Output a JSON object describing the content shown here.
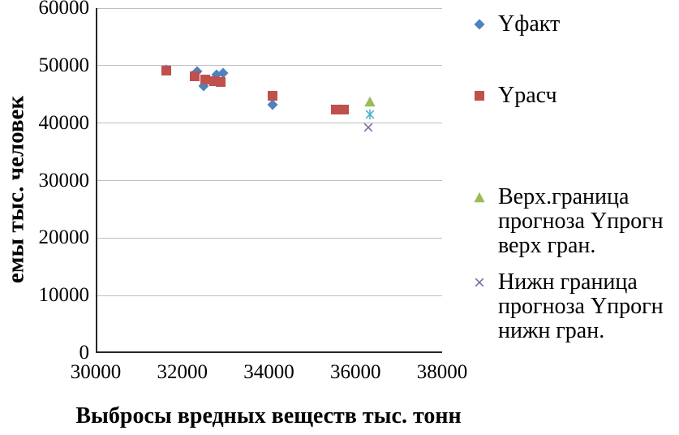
{
  "figure": {
    "background": "#ffffff",
    "grid_color": "#bfbfbf",
    "axis_color": "#262626"
  },
  "chart_data": {
    "type": "scatter",
    "xlabel": "Выбросы вредных веществ тыс. тонн",
    "ylabel": "емы тыс. человек",
    "xlim": [
      30000,
      38000
    ],
    "ylim": [
      0,
      60000
    ],
    "x_ticks": [
      30000,
      32000,
      34000,
      36000,
      38000
    ],
    "y_ticks": [
      0,
      10000,
      20000,
      30000,
      40000,
      50000,
      60000
    ],
    "grid": "horizontal",
    "legend_position": "right",
    "series": [
      {
        "name": "Yфакт",
        "marker": "diamond",
        "color": "#4F81BD",
        "in_legend": true,
        "points": [
          [
            31600,
            49300
          ],
          [
            32300,
            49000
          ],
          [
            32450,
            46500
          ],
          [
            32750,
            48400
          ],
          [
            32900,
            48700
          ],
          [
            34050,
            43200
          ],
          [
            35600,
            42300
          ]
        ]
      },
      {
        "name": "Yрасч",
        "marker": "square",
        "color": "#C0504D",
        "in_legend": true,
        "points": [
          [
            31600,
            49200
          ],
          [
            32250,
            48100
          ],
          [
            32500,
            47600
          ],
          [
            32700,
            47300
          ],
          [
            32850,
            47100
          ],
          [
            34050,
            44800
          ],
          [
            35500,
            42400
          ],
          [
            35700,
            42400
          ]
        ]
      },
      {
        "name": "Верх.граница прогноза Yпрогн верх гран.",
        "marker": "triangle",
        "color": "#9BBB59",
        "in_legend": true,
        "points": [
          [
            36300,
            43800
          ]
        ]
      },
      {
        "name": "Нижн граница прогноза Yпрогн нижн гран.",
        "marker": "x",
        "color": "#8064A2",
        "in_legend": true,
        "points": [
          [
            36250,
            39200
          ]
        ]
      },
      {
        "name": "",
        "marker": "asterisk",
        "color": "#4BACC6",
        "in_legend": false,
        "points": [
          [
            36300,
            41500
          ]
        ]
      }
    ]
  }
}
